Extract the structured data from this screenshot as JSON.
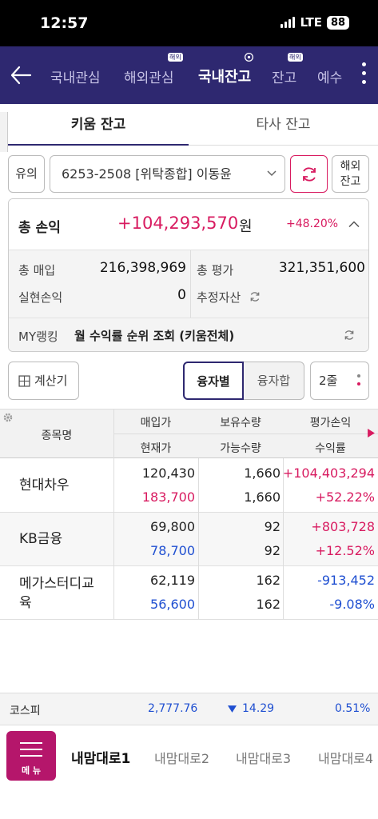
{
  "status_bar": {
    "time": "12:57",
    "network": "LTE",
    "battery": "88"
  },
  "nav": {
    "tabs": [
      {
        "label": "국내관심",
        "badge": ""
      },
      {
        "label": "해외관심",
        "badge": "해외"
      },
      {
        "label": "국내잔고",
        "badge": ""
      },
      {
        "label": "잔고",
        "badge": "해외"
      },
      {
        "label": "예수",
        "badge": ""
      }
    ]
  },
  "subtabs": {
    "primary": "키움 잔고",
    "secondary": "타사 잔고"
  },
  "account": {
    "type": "유의",
    "selected": "6253-2508 [위탁종합] 이동윤",
    "overseas_label_1": "해외",
    "overseas_label_2": "잔고"
  },
  "summary": {
    "total_pl_label": "총 손익",
    "total_pl_value": "+104,293,570",
    "currency": "원",
    "total_pl_rate": "+48.20%",
    "buy_label": "총 매입",
    "buy_value": "216,398,969",
    "eval_label": "총 평가",
    "eval_value": "321,351,600",
    "realized_label": "실현손익",
    "realized_value": "0",
    "est_assets_label": "추정자산",
    "ranking_label": "MY랭킹",
    "ranking_text": "월 수익률 순위 조회 (키움전체)"
  },
  "controls": {
    "calculator": "계산기",
    "seg_active": "융자별",
    "seg_inactive": "융자합",
    "lines": "2줄"
  },
  "table": {
    "headers": {
      "name": "종목명",
      "buy_price": "매입가",
      "cur_price": "현재가",
      "qty": "보유수량",
      "avail_qty": "가능수량",
      "pl": "평가손익",
      "rate": "수익률"
    },
    "rows": [
      {
        "name": "현대차우",
        "buy_price": "120,430",
        "cur_price": "183,700",
        "qty": "1,660",
        "avail_qty": "1,660",
        "pl": "+104,403,294",
        "rate": "+52.22%",
        "dir": "up"
      },
      {
        "name": "KB금융",
        "buy_price": "69,800",
        "cur_price": "78,700",
        "qty": "92",
        "avail_qty": "92",
        "pl": "+803,728",
        "rate": "+12.52%",
        "dir": "up"
      },
      {
        "name": "메가스터디교육",
        "buy_price": "62,119",
        "cur_price": "56,600",
        "qty": "162",
        "avail_qty": "162",
        "pl": "-913,452",
        "rate": "-9.08%",
        "dir": "down"
      }
    ]
  },
  "index_bar": {
    "name": "코스피",
    "value": "2,777.76",
    "change": "14.29",
    "rate": "0.51%"
  },
  "bottom_menu": {
    "menu_label": "메 뉴",
    "tabs": [
      "내맘대로1",
      "내맘대로2",
      "내맘대로3",
      "내맘대로4"
    ]
  },
  "colors": {
    "nav_bg": "#2e2870",
    "up": "#d81b60",
    "down": "#1f4fd1",
    "menu_bg": "#b5166b"
  }
}
